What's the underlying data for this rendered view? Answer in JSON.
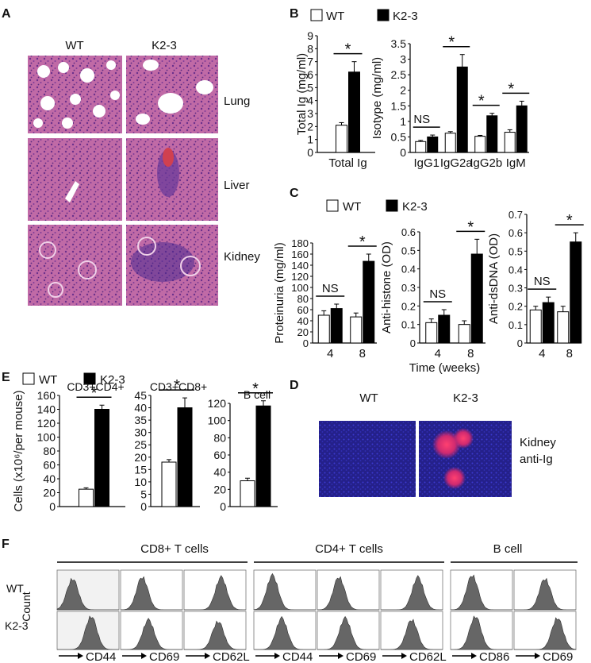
{
  "panel_labels": {
    "A": "A",
    "B": "B",
    "C": "C",
    "D": "D",
    "E": "E",
    "F": "F"
  },
  "legend": {
    "wt": "WT",
    "ko": "K2-3"
  },
  "colors": {
    "wt": "#ffffff",
    "ko": "#000000",
    "stroke": "#000000"
  },
  "panel_a": {
    "columns": [
      "WT",
      "K2-3"
    ],
    "rows": [
      "Lung",
      "Liver",
      "Kidney"
    ]
  },
  "panel_d": {
    "columns": [
      "WT",
      "K2-3"
    ],
    "label_line1": "Kidney",
    "label_line2": "anti-Ig"
  },
  "panel_f": {
    "groups": [
      "CD8+ T cells",
      "CD4+ T cells",
      "B cell"
    ],
    "rows": [
      "WT",
      "K2-3"
    ],
    "y_label": "Count",
    "markers": [
      "CD44",
      "CD69",
      "CD62L",
      "CD44",
      "CD69",
      "CD62L",
      "CD86",
      "CD69"
    ]
  },
  "chart_data": [
    {
      "id": "B-total",
      "type": "bar",
      "categories": [
        "Total Ig"
      ],
      "series": [
        {
          "name": "WT",
          "values": [
            2.1
          ],
          "errors": [
            0.2
          ]
        },
        {
          "name": "K2-3",
          "values": [
            6.2
          ],
          "errors": [
            0.8
          ]
        }
      ],
      "ylabel": "Total Ig (mg/ml)",
      "ylim": [
        0,
        9
      ],
      "yticks": [
        0,
        1,
        2,
        3,
        4,
        5,
        6,
        7,
        8,
        9
      ],
      "significance": [
        "*"
      ]
    },
    {
      "id": "B-isotype",
      "type": "bar",
      "categories": [
        "IgG1",
        "IgG2a",
        "IgG2b",
        "IgM"
      ],
      "series": [
        {
          "name": "WT",
          "values": [
            0.35,
            0.62,
            0.52,
            0.65
          ],
          "errors": [
            0.04,
            0.05,
            0.03,
            0.08
          ]
        },
        {
          "name": "K2-3",
          "values": [
            0.5,
            2.75,
            1.18,
            1.5
          ],
          "errors": [
            0.06,
            0.4,
            0.08,
            0.15
          ]
        }
      ],
      "ylabel": "Isotype (mg/ml)",
      "ylim": [
        0,
        3.5
      ],
      "yticks": [
        0,
        0.5,
        1,
        1.5,
        2,
        2.5,
        3,
        3.5
      ],
      "significance": [
        "NS",
        "*",
        "*",
        "*"
      ]
    },
    {
      "id": "C-proteinuria",
      "type": "bar",
      "categories": [
        "4",
        "8"
      ],
      "series": [
        {
          "name": "WT",
          "values": [
            50,
            47
          ],
          "errors": [
            8,
            7
          ]
        },
        {
          "name": "K2-3",
          "values": [
            62,
            147
          ],
          "errors": [
            8,
            13
          ]
        }
      ],
      "ylabel": "Proteinuria (mg/ml)",
      "ylim": [
        0,
        180
      ],
      "yticks": [
        0,
        20,
        40,
        60,
        80,
        100,
        120,
        140,
        160,
        180
      ],
      "significance": [
        "NS",
        "*"
      ]
    },
    {
      "id": "C-histone",
      "type": "bar",
      "categories": [
        "4",
        "8"
      ],
      "series": [
        {
          "name": "WT",
          "values": [
            0.11,
            0.1
          ],
          "errors": [
            0.02,
            0.02
          ]
        },
        {
          "name": "K2-3",
          "values": [
            0.15,
            0.48
          ],
          "errors": [
            0.03,
            0.08
          ]
        }
      ],
      "ylabel": "Anti-histone (OD)",
      "xlabel": "Time (weeks)",
      "ylim": [
        0,
        0.6
      ],
      "yticks": [
        0,
        0.1,
        0.2,
        0.3,
        0.4,
        0.5,
        0.6
      ],
      "significance": [
        "NS",
        "*"
      ]
    },
    {
      "id": "C-dsdna",
      "type": "bar",
      "categories": [
        "4",
        "8"
      ],
      "series": [
        {
          "name": "WT",
          "values": [
            0.18,
            0.17
          ],
          "errors": [
            0.02,
            0.03
          ]
        },
        {
          "name": "K2-3",
          "values": [
            0.22,
            0.55
          ],
          "errors": [
            0.03,
            0.05
          ]
        }
      ],
      "ylabel": "Anti-dsDNA (OD)",
      "ylim": [
        0,
        0.7
      ],
      "yticks": [
        0,
        0.1,
        0.2,
        0.3,
        0.4,
        0.5,
        0.6,
        0.7
      ],
      "significance": [
        "NS",
        "*"
      ]
    },
    {
      "id": "E-cd4",
      "type": "bar",
      "title": "CD3+CD4+",
      "categories": [
        ""
      ],
      "series": [
        {
          "name": "WT",
          "values": [
            25
          ],
          "errors": [
            2
          ]
        },
        {
          "name": "K2-3",
          "values": [
            140
          ],
          "errors": [
            6
          ]
        }
      ],
      "ylabel": "Cells (x10⁶/per mouse)",
      "ylim": [
        0,
        160
      ],
      "yticks": [
        0,
        20,
        40,
        60,
        80,
        100,
        120,
        140,
        160
      ],
      "significance": [
        "*"
      ]
    },
    {
      "id": "E-cd8",
      "type": "bar",
      "title": "CD3+CD8+",
      "categories": [
        ""
      ],
      "series": [
        {
          "name": "WT",
          "values": [
            18
          ],
          "errors": [
            1
          ]
        },
        {
          "name": "K2-3",
          "values": [
            40
          ],
          "errors": [
            4
          ]
        }
      ],
      "ylim": [
        0,
        45
      ],
      "yticks": [
        0,
        5,
        10,
        15,
        20,
        25,
        30,
        35,
        40,
        45
      ],
      "significance": [
        "*"
      ]
    },
    {
      "id": "E-bcell",
      "type": "bar",
      "title": "B cell",
      "categories": [
        ""
      ],
      "series": [
        {
          "name": "WT",
          "values": [
            30
          ],
          "errors": [
            3
          ]
        },
        {
          "name": "K2-3",
          "values": [
            117
          ],
          "errors": [
            6
          ]
        }
      ],
      "ylim": [
        0,
        120
      ],
      "yticks": [
        0,
        20,
        40,
        60,
        80,
        100,
        120
      ],
      "significance": [
        "*"
      ]
    }
  ]
}
